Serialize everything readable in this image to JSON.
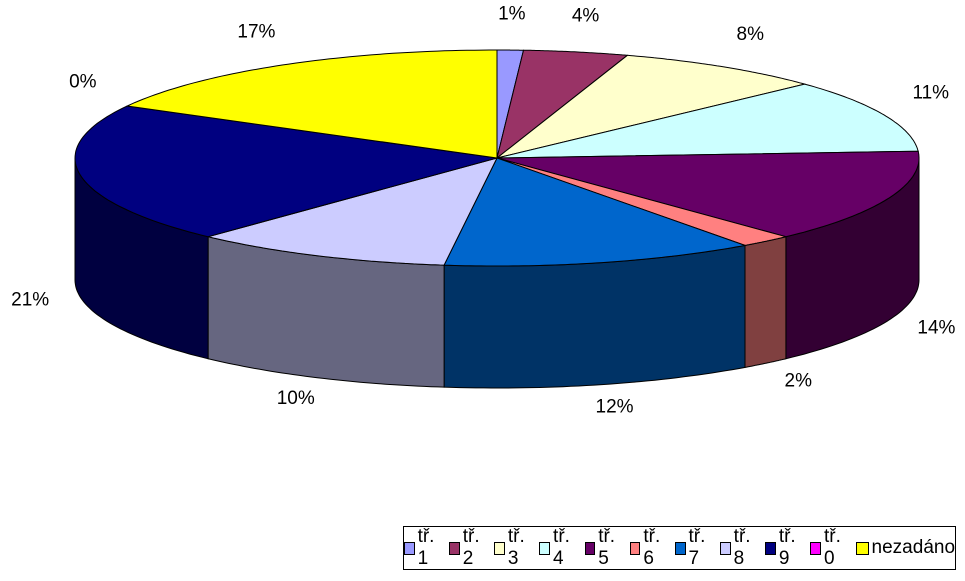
{
  "chart_data": {
    "type": "pie3d",
    "categories": [
      "tř. 1",
      "tř. 2",
      "tř. 3",
      "tř. 4",
      "tř. 5",
      "tř. 6",
      "tř. 7",
      "tř. 8",
      "tř. 9",
      "tř. 0",
      "nezadáno"
    ],
    "values": [
      1,
      4,
      8,
      11,
      14,
      2,
      12,
      10,
      21,
      0,
      17
    ],
    "value_labels": [
      "1%",
      "4%",
      "8%",
      "11%",
      "14%",
      "2%",
      "12%",
      "10%",
      "21%",
      "0%",
      "17%"
    ],
    "colors": [
      "#9999ff",
      "#993366",
      "#ffffcc",
      "#ccffff",
      "#660066",
      "#ff8080",
      "#0066cc",
      "#ccccff",
      "#000080",
      "#ff00ff",
      "#ffff00"
    ],
    "legend": "bottom"
  }
}
